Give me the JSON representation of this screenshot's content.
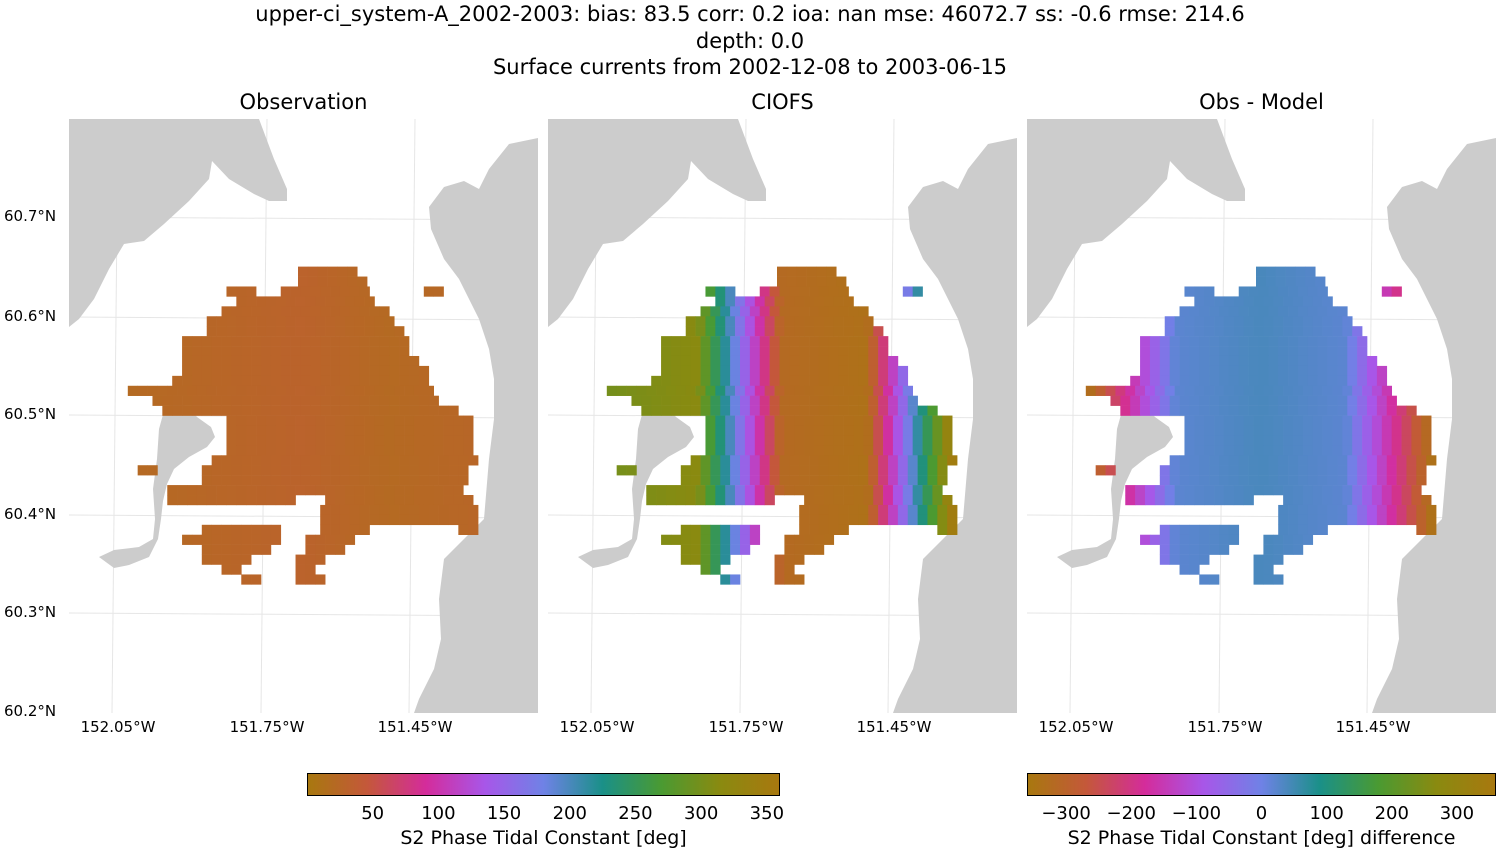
{
  "title": {
    "line1": "upper-ci_system-A_2002-2003: bias: 83.5  corr: 0.2  ioa: nan  mse: 46072.7  ss: -0.6  rmse: 214.6",
    "line2": "depth: 0.0",
    "line3": "Surface currents from 2002-12-08 to 2003-06-15"
  },
  "panels": [
    {
      "title": "Observation"
    },
    {
      "title": "CIOFS"
    },
    {
      "title": "Obs - Model"
    }
  ],
  "lat_ticks": [
    "60.7°N",
    "60.6°N",
    "60.5°N",
    "60.4°N",
    "60.3°N",
    "60.2°N"
  ],
  "lon_ticks": [
    "152.05°W",
    "151.75°W",
    "151.45°W"
  ],
  "colorbars": [
    {
      "label": "S2 Phase Tidal Constant [deg]",
      "ticks": [
        "50",
        "100",
        "150",
        "200",
        "250",
        "300",
        "350"
      ],
      "range": [
        0,
        360
      ]
    },
    {
      "label": "S2 Phase Tidal Constant [deg] difference",
      "ticks": [
        "−300",
        "−200",
        "−100",
        "0",
        "100",
        "200",
        "300"
      ],
      "range": [
        -360,
        360
      ]
    }
  ],
  "colors": {
    "land": "#cccccc",
    "grid": "#e6e6e6",
    "colormap": [
      "#a8780f",
      "#c4583a",
      "#d42c9b",
      "#a856e8",
      "#6f82e6",
      "#1a9088",
      "#4a9a32",
      "#8a8a10",
      "#a8780f"
    ]
  },
  "chart_data": {
    "type": "heatmap",
    "lat_range": [
      60.2,
      60.8
    ],
    "lon_range": [
      -152.15,
      -151.2
    ],
    "cell_size_deg": {
      "lon": 0.02,
      "lat": 0.01
    },
    "rows": [
      {
        "lat": 60.645,
        "spans": [
          [
            -151.675,
            -151.575
          ]
        ]
      },
      {
        "lat": 60.635,
        "spans": [
          [
            -151.675,
            -151.555
          ]
        ]
      },
      {
        "lat": 60.625,
        "spans": [
          [
            -151.82,
            -151.78
          ],
          [
            -151.71,
            -151.54
          ],
          [
            -151.42,
            -151.4
          ]
        ]
      },
      {
        "lat": 60.615,
        "spans": [
          [
            -151.8,
            -151.53
          ]
        ]
      },
      {
        "lat": 60.605,
        "spans": [
          [
            -151.83,
            -151.51
          ]
        ]
      },
      {
        "lat": 60.595,
        "spans": [
          [
            -151.86,
            -151.5
          ]
        ]
      },
      {
        "lat": 60.585,
        "spans": [
          [
            -151.86,
            -151.48
          ]
        ]
      },
      {
        "lat": 60.575,
        "spans": [
          [
            -151.91,
            -151.47
          ]
        ]
      },
      {
        "lat": 60.565,
        "spans": [
          [
            -151.91,
            -151.46
          ]
        ]
      },
      {
        "lat": 60.555,
        "spans": [
          [
            -151.91,
            -151.44
          ]
        ]
      },
      {
        "lat": 60.545,
        "spans": [
          [
            -151.91,
            -151.43
          ]
        ]
      },
      {
        "lat": 60.535,
        "spans": [
          [
            -151.93,
            -151.42
          ]
        ]
      },
      {
        "lat": 60.525,
        "spans": [
          [
            -152.02,
            -151.41
          ]
        ]
      },
      {
        "lat": 60.515,
        "spans": [
          [
            -151.97,
            -151.41
          ]
        ]
      },
      {
        "lat": 60.505,
        "spans": [
          [
            -151.95,
            -151.37
          ]
        ]
      },
      {
        "lat": 60.495,
        "spans": [
          [
            -151.82,
            -151.33
          ]
        ]
      },
      {
        "lat": 60.485,
        "spans": [
          [
            -151.82,
            -151.33
          ]
        ]
      },
      {
        "lat": 60.475,
        "spans": [
          [
            -151.82,
            -151.33
          ]
        ]
      },
      {
        "lat": 60.465,
        "spans": [
          [
            -151.82,
            -151.33
          ]
        ]
      },
      {
        "lat": 60.455,
        "spans": [
          [
            -151.85,
            -151.33
          ]
        ]
      },
      {
        "lat": 60.445,
        "spans": [
          [
            -152.0,
            -151.98
          ],
          [
            -151.87,
            -151.35
          ]
        ]
      },
      {
        "lat": 60.435,
        "spans": [
          [
            -151.87,
            -151.35
          ]
        ]
      },
      {
        "lat": 60.425,
        "spans": [
          [
            -151.94,
            -151.35
          ]
        ]
      },
      {
        "lat": 60.415,
        "spans": [
          [
            -151.94,
            -151.7
          ],
          [
            -151.62,
            -151.33
          ]
        ]
      },
      {
        "lat": 60.405,
        "spans": [
          [
            -151.63,
            -151.33
          ]
        ]
      },
      {
        "lat": 60.395,
        "spans": [
          [
            -151.63,
            -151.33
          ]
        ]
      },
      {
        "lat": 60.385,
        "spans": [
          [
            -151.87,
            -151.73
          ],
          [
            -151.63,
            -151.55
          ],
          [
            -151.35,
            -151.33
          ]
        ]
      },
      {
        "lat": 60.375,
        "spans": [
          [
            -151.91,
            -151.73
          ],
          [
            -151.66,
            -151.58
          ]
        ]
      },
      {
        "lat": 60.365,
        "spans": [
          [
            -151.87,
            -151.75
          ],
          [
            -151.66,
            -151.6
          ]
        ]
      },
      {
        "lat": 60.355,
        "spans": [
          [
            -151.87,
            -151.78
          ],
          [
            -151.68,
            -151.64
          ]
        ]
      },
      {
        "lat": 60.345,
        "spans": [
          [
            -151.83,
            -151.81
          ],
          [
            -151.68,
            -151.66
          ]
        ]
      },
      {
        "lat": 60.335,
        "spans": [
          [
            -151.79,
            -151.77
          ],
          [
            -151.68,
            -151.64
          ]
        ]
      }
    ],
    "west_to_east_values": [
      [
        20,
        25,
        30,
        20,
        25
      ],
      [
        300,
        315,
        20,
        10,
        350
      ],
      [
        -330,
        20,
        40,
        20,
        -340
      ]
    ]
  }
}
